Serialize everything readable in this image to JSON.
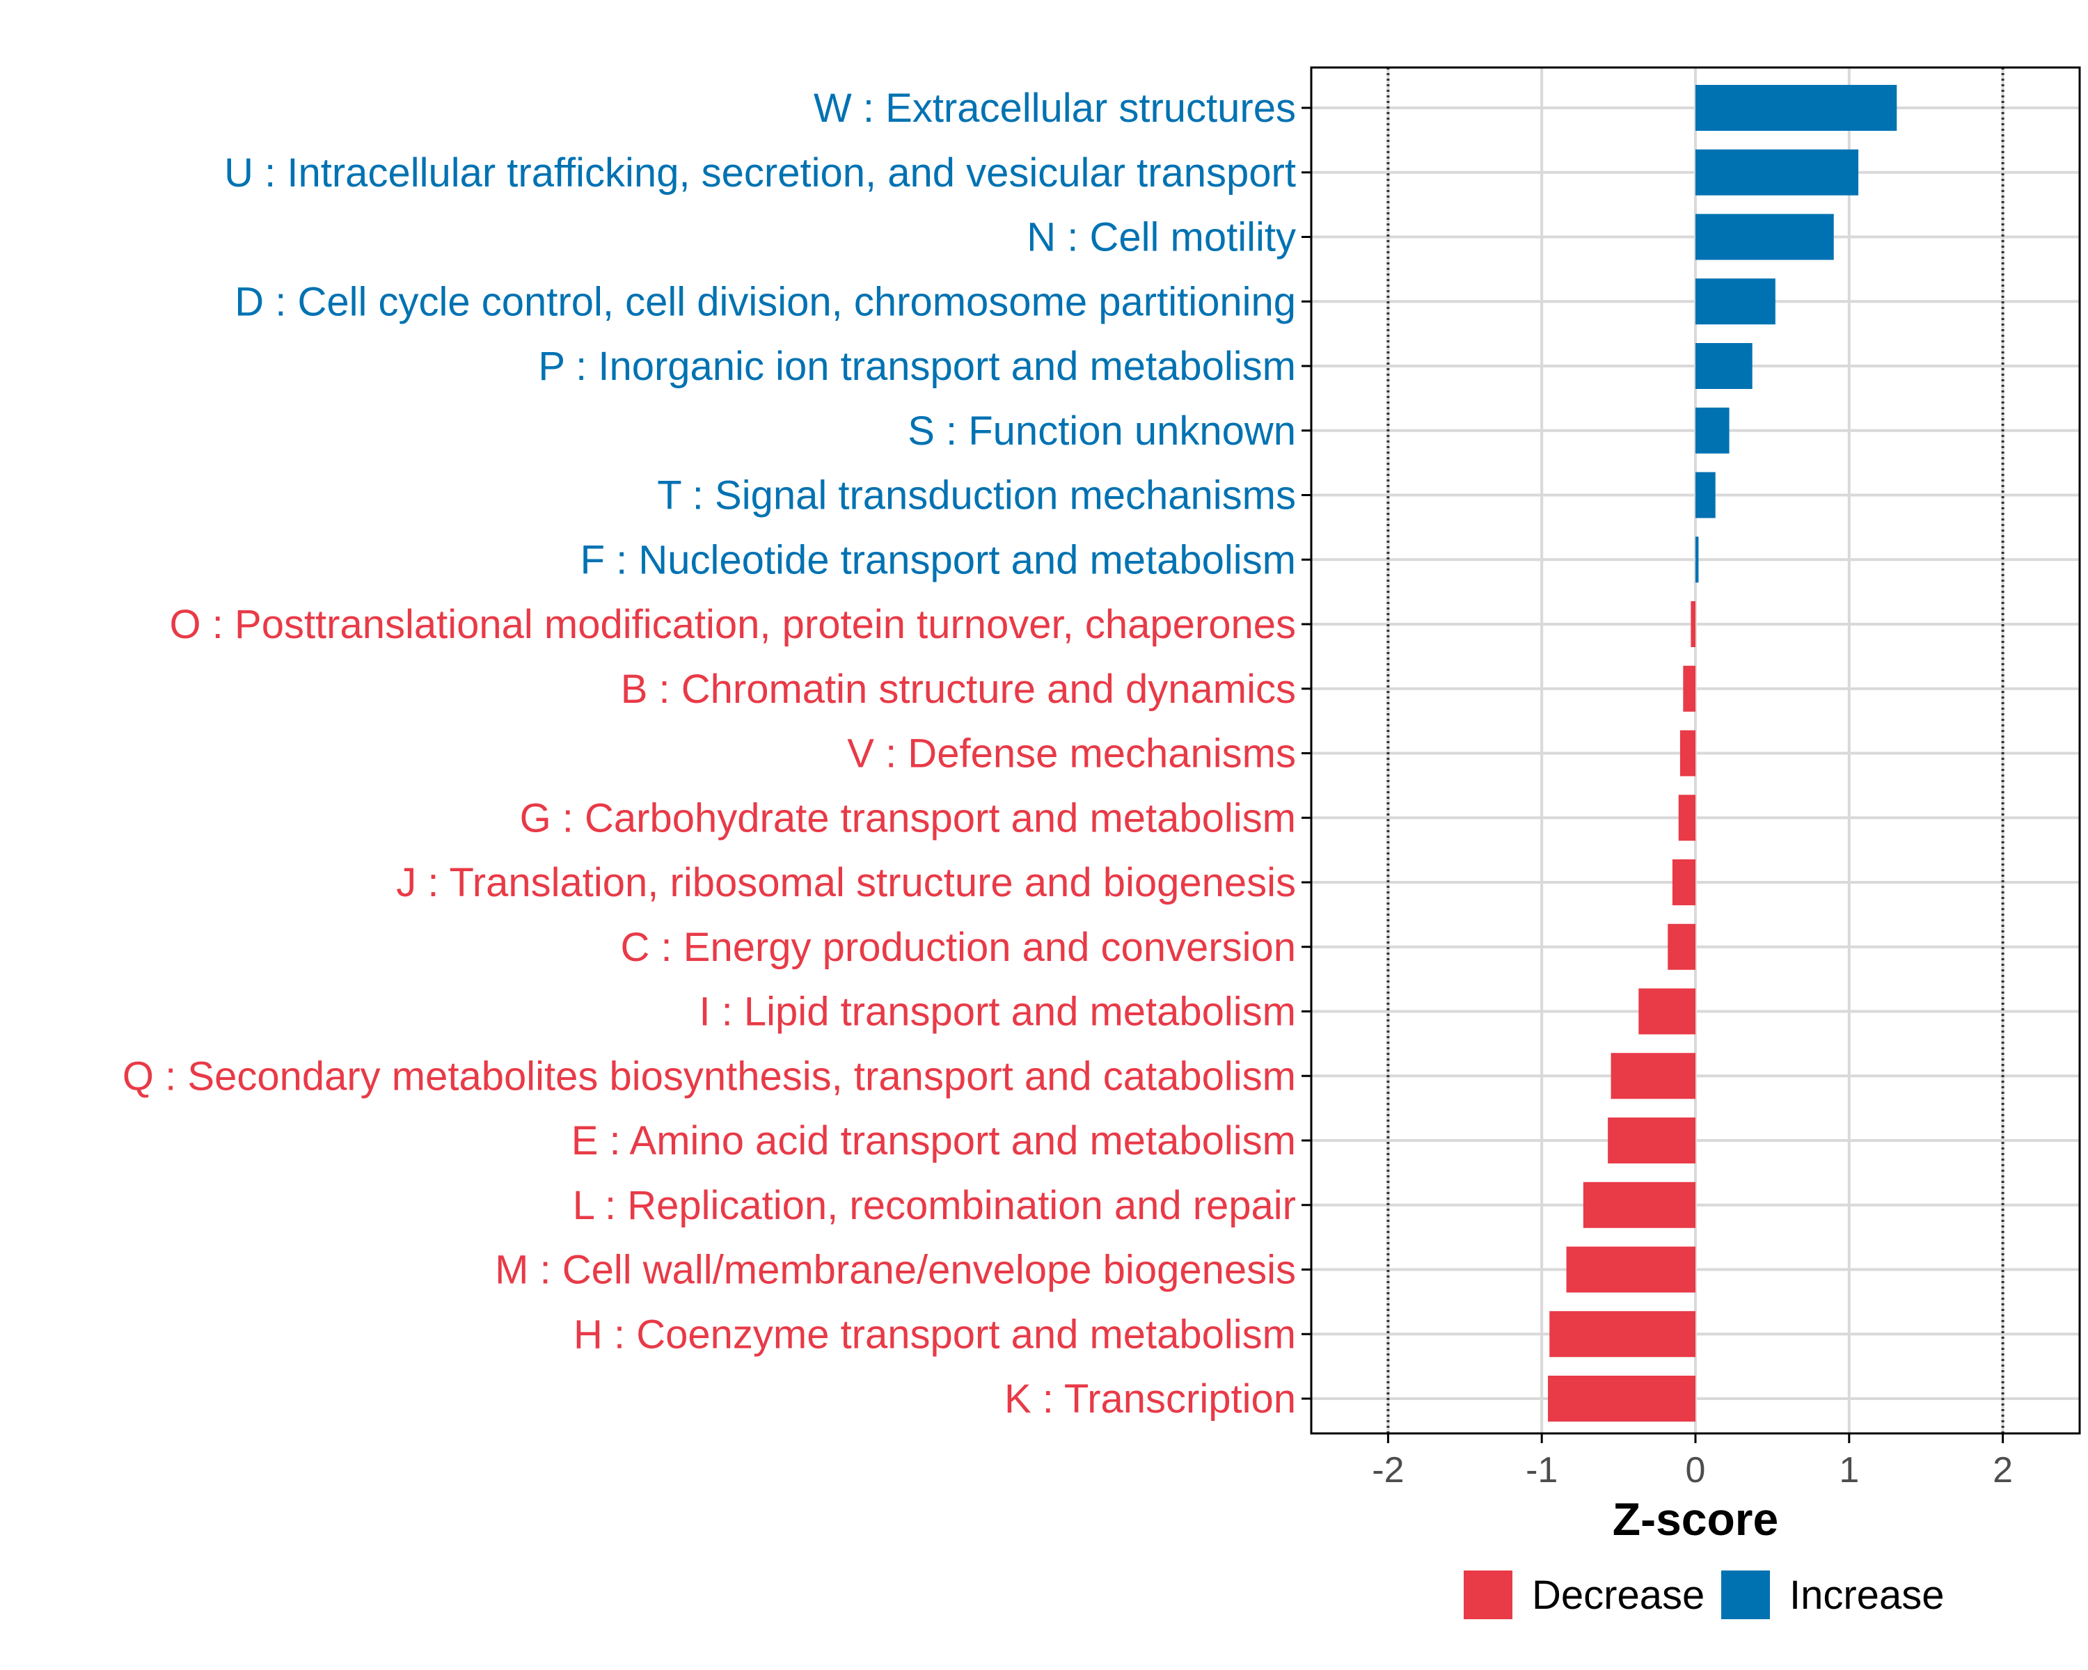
{
  "colors": {
    "increase": "#0072B2",
    "decrease": "#E83A47",
    "grid": "#d9d9d9",
    "axis": "#000000",
    "reference_line": "#333333"
  },
  "chart_data": {
    "type": "bar",
    "orientation": "horizontal",
    "xlabel": "Z-score",
    "ylabel": "",
    "xlim": [
      -2.5,
      2.5
    ],
    "x_ticks": [
      -2,
      -1,
      0,
      1,
      2
    ],
    "x_tick_labels": [
      "-2",
      "-1",
      "0",
      "1",
      "2"
    ],
    "reference_lines": [
      -2,
      2
    ],
    "grid": true,
    "legend_position": "bottom-right",
    "legend": [
      {
        "label": "Decrease",
        "color": "#E83A47"
      },
      {
        "label": "Increase",
        "color": "#0072B2"
      }
    ],
    "categories": [
      "W : Extracellular structures",
      "U : Intracellular trafficking, secretion, and vesicular transport",
      "N : Cell motility",
      "D : Cell cycle control, cell division, chromosome partitioning",
      "P : Inorganic ion transport and metabolism",
      "S : Function unknown",
      "T : Signal transduction mechanisms",
      "F : Nucleotide transport and metabolism",
      "O : Posttranslational modification, protein turnover, chaperones",
      "B : Chromatin structure and dynamics",
      "V : Defense mechanisms",
      "G : Carbohydrate transport and metabolism",
      "J : Translation, ribosomal structure and biogenesis",
      "C : Energy production and conversion",
      "I : Lipid transport and metabolism",
      "Q : Secondary metabolites biosynthesis, transport and catabolism",
      "E : Amino acid transport and metabolism",
      "L : Replication, recombination and repair",
      "M : Cell wall/membrane/envelope biogenesis",
      "H : Coenzyme transport and metabolism",
      "K : Transcription"
    ],
    "values": [
      1.31,
      1.06,
      0.9,
      0.52,
      0.37,
      0.22,
      0.13,
      0.02,
      -0.03,
      -0.08,
      -0.1,
      -0.11,
      -0.15,
      -0.18,
      -0.37,
      -0.55,
      -0.57,
      -0.73,
      -0.84,
      -0.95,
      -0.96
    ],
    "groups": [
      "Increase",
      "Increase",
      "Increase",
      "Increase",
      "Increase",
      "Increase",
      "Increase",
      "Increase",
      "Decrease",
      "Decrease",
      "Decrease",
      "Decrease",
      "Decrease",
      "Decrease",
      "Decrease",
      "Decrease",
      "Decrease",
      "Decrease",
      "Decrease",
      "Decrease",
      "Decrease"
    ]
  }
}
